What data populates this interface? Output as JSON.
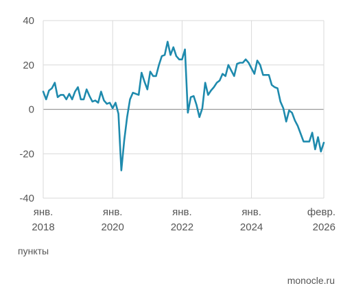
{
  "chart_data": {
    "type": "line",
    "ylabel": "пункты",
    "ylim": [
      -40,
      40
    ],
    "yticks": [
      40,
      20,
      0,
      -20,
      -40
    ],
    "xlim": [
      "2018-01",
      "2026-02"
    ],
    "xticks": [
      {
        "date": "2018-01",
        "month": "янв.",
        "year": "2018"
      },
      {
        "date": "2020-01",
        "month": "янв.",
        "year": "2020"
      },
      {
        "date": "2022-01",
        "month": "янв.",
        "year": "2022"
      },
      {
        "date": "2024-01",
        "month": "янв.",
        "year": "2024"
      },
      {
        "date": "2026-02",
        "month": "февр.",
        "year": "2026"
      }
    ],
    "grid": true,
    "colors": {
      "line": "#1e8aad",
      "grid": "#d9d9d9",
      "zero": "#9a9a9a",
      "text": "#555555"
    },
    "series": [
      {
        "x": [
          "2018-01",
          "2018-02",
          "2018-03",
          "2018-04",
          "2018-05",
          "2018-06",
          "2018-07",
          "2018-08",
          "2018-09",
          "2018-10",
          "2018-11",
          "2018-12",
          "2019-01",
          "2019-02",
          "2019-03",
          "2019-04",
          "2019-05",
          "2019-06",
          "2019-07",
          "2019-08",
          "2019-09",
          "2019-10",
          "2019-11",
          "2019-12",
          "2020-01",
          "2020-02",
          "2020-03",
          "2020-04",
          "2020-05",
          "2020-06",
          "2020-07",
          "2020-08",
          "2020-09",
          "2020-10",
          "2020-11",
          "2020-12",
          "2021-01",
          "2021-02",
          "2021-03",
          "2021-04",
          "2021-05",
          "2021-06",
          "2021-07",
          "2021-08",
          "2021-09",
          "2021-10",
          "2021-11",
          "2021-12",
          "2022-01",
          "2022-02",
          "2022-03",
          "2022-04",
          "2022-05",
          "2022-06",
          "2022-07",
          "2022-08",
          "2022-09",
          "2022-10",
          "2022-11",
          "2022-12",
          "2023-01",
          "2023-02",
          "2023-03",
          "2023-04",
          "2023-05",
          "2023-06",
          "2023-07",
          "2023-08",
          "2023-09",
          "2023-10",
          "2023-11",
          "2023-12",
          "2024-01",
          "2024-02",
          "2024-03",
          "2024-04",
          "2024-05",
          "2024-06",
          "2024-07",
          "2024-08",
          "2024-09",
          "2024-10",
          "2024-11",
          "2024-12",
          "2025-01",
          "2025-02",
          "2025-03",
          "2025-04",
          "2025-05",
          "2025-06",
          "2025-07",
          "2025-08",
          "2025-09",
          "2025-10",
          "2025-11",
          "2025-12",
          "2026-01",
          "2026-02"
        ],
        "values": [
          8,
          4.5,
          8.5,
          9.5,
          12,
          5.5,
          6.5,
          6.5,
          4.5,
          7,
          4.5,
          8,
          10,
          4.5,
          4.5,
          9,
          6,
          3.5,
          4,
          3,
          8,
          4,
          2.5,
          3,
          0.5,
          3,
          -2,
          -27.5,
          -14,
          -3.5,
          4.5,
          7.5,
          7,
          6.5,
          16.5,
          12.5,
          9,
          17,
          15,
          15,
          20,
          24,
          24.5,
          30.5,
          24.5,
          28,
          24,
          22.5,
          22.5,
          27,
          -1.5,
          5.5,
          6,
          2,
          -3.5,
          0.5,
          12,
          6.5,
          8.5,
          10,
          12,
          13,
          16,
          15,
          20,
          17.5,
          15,
          20.5,
          21,
          21,
          22.5,
          21,
          18.5,
          16,
          22,
          20,
          15.5,
          15.5,
          15.5,
          11,
          10,
          9.5,
          3.5,
          0.5,
          -5.5,
          -0.5,
          -1.5,
          -5,
          -7.5,
          -11,
          -14.5,
          -14.5,
          -14.5,
          -10.5,
          -18,
          -12.5,
          -19,
          -15
        ]
      }
    ]
  },
  "source": "monocle.ru"
}
